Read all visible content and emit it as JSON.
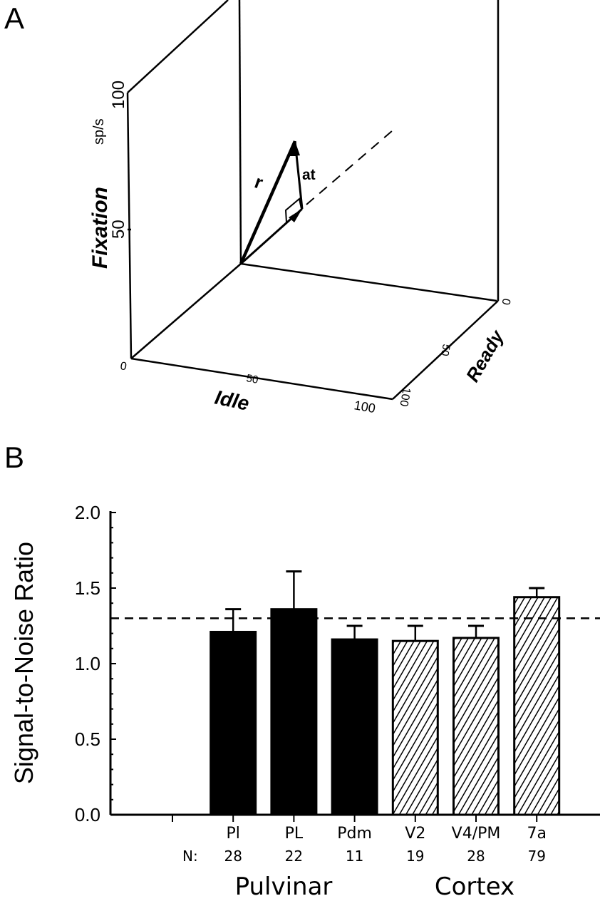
{
  "panel_a": {
    "label": "A",
    "axes": {
      "fixation": {
        "label": "Fixation",
        "unit": "sp/s",
        "ticks": [
          "50",
          "100"
        ]
      },
      "idle": {
        "label": "Idle",
        "ticks": [
          "0",
          "50",
          "100"
        ]
      },
      "ready": {
        "label": "Ready",
        "ticks": [
          "0",
          "50",
          "100"
        ]
      }
    },
    "vector_labels": {
      "r": "r",
      "at": "at"
    }
  },
  "chart_data": {
    "type": "bar",
    "panel_label": "B",
    "ylabel": "Signal-to-Noise Ratio",
    "ylim": [
      0,
      2.0
    ],
    "yticks": [
      "0.0",
      "0.5",
      "1.0",
      "1.5",
      "2.0"
    ],
    "categories": [
      "Pl",
      "PL",
      "Pdm",
      "V2",
      "V4/PM",
      "7a"
    ],
    "n_label": "N:",
    "n_values": [
      "28",
      "22",
      "11",
      "19",
      "28",
      "79"
    ],
    "values": [
      1.21,
      1.36,
      1.16,
      1.15,
      1.17,
      1.44
    ],
    "error_upper": [
      1.36,
      1.61,
      1.25,
      1.25,
      1.25,
      1.5
    ],
    "fill": [
      "solid",
      "solid",
      "solid",
      "hatched",
      "hatched",
      "hatched"
    ],
    "reference_line": 1.3,
    "groups": [
      {
        "label": "Pulvinar"
      },
      {
        "label": "Cortex"
      }
    ],
    "grid": false,
    "colors": {
      "solid": "#000000",
      "hatched": "#ffffff"
    }
  }
}
